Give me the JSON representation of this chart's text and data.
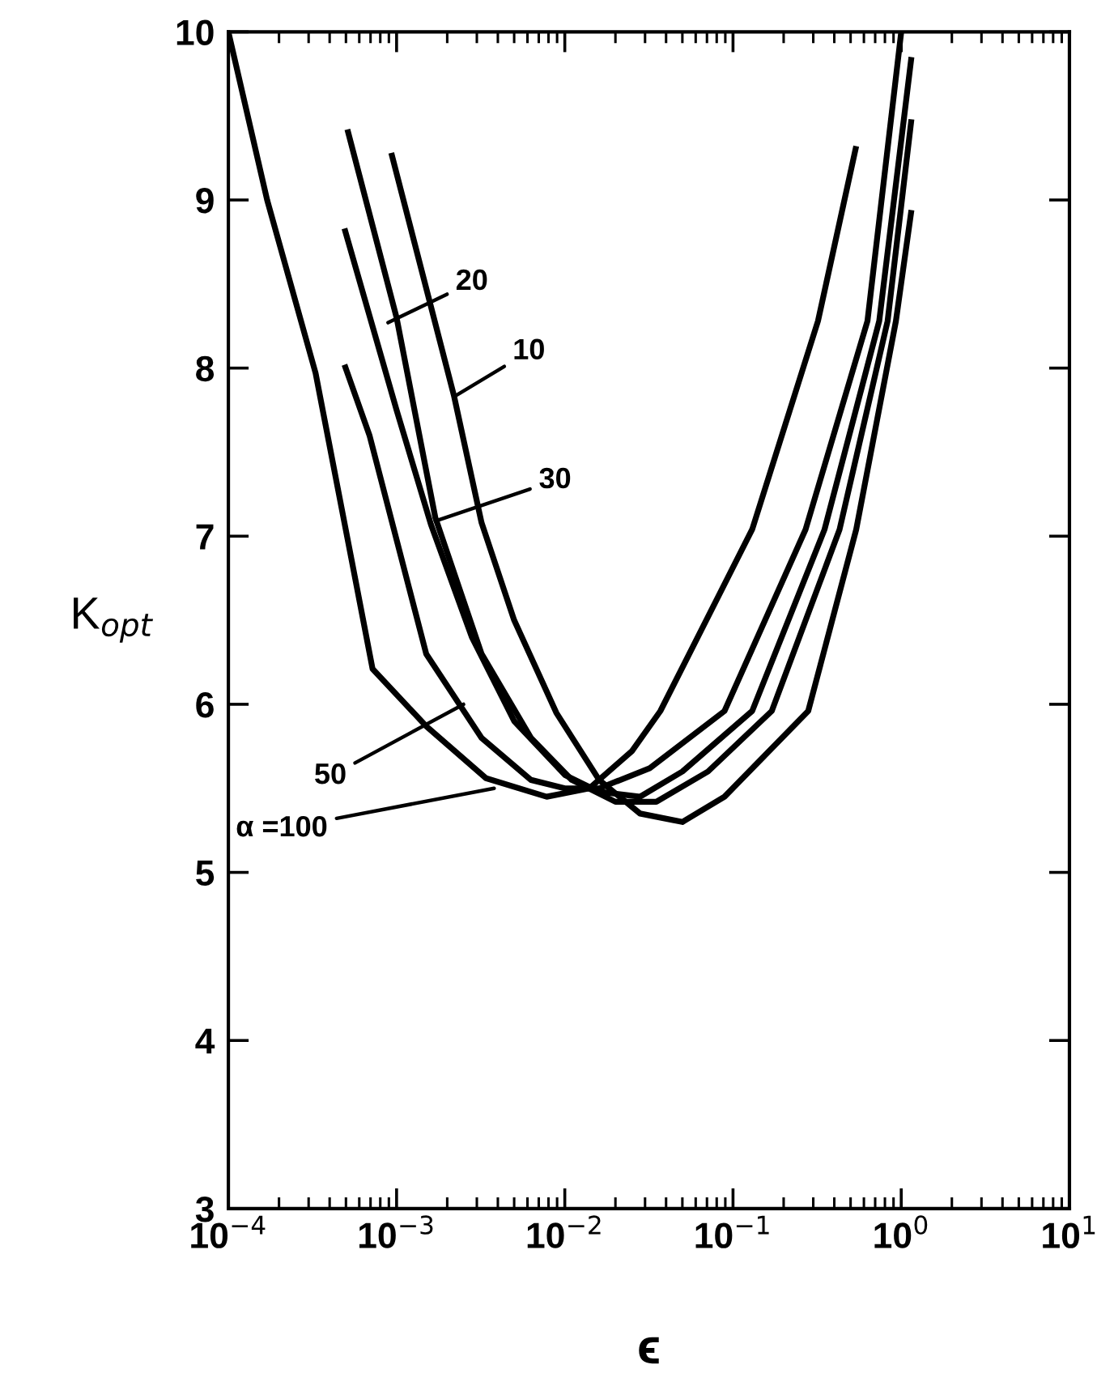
{
  "chart_data": {
    "type": "line",
    "xlabel": "ϵ",
    "ylabel": "K$_{opt}$",
    "log": "x",
    "xlim": [
      0.0001,
      10
    ],
    "ylim": [
      3,
      10
    ],
    "xticks": [
      {
        "value": 0.0001,
        "label": "10$^{−4}$"
      },
      {
        "value": 0.001,
        "label": "10$^{−3}$"
      },
      {
        "value": 0.01,
        "label": "10$^{−2}$"
      },
      {
        "value": 0.1,
        "label": "10$^{−1}$"
      },
      {
        "value": 1,
        "label": "10$^{0}$"
      },
      {
        "value": 10,
        "label": "10$^{1}$"
      }
    ],
    "yticks": [
      3,
      4,
      5,
      6,
      7,
      8,
      9,
      10
    ],
    "series": [
      {
        "color": "#000000",
        "x": [
          0.0001,
          0.00017,
          0.00033,
          0.00054,
          0.00072,
          0.0015,
          0.0034,
          0.0078,
          0.014,
          0.025,
          0.037,
          0.13,
          0.32,
          0.54
        ],
        "values": [
          10,
          9.0,
          7.97,
          6.86,
          6.21,
          5.87,
          5.56,
          5.45,
          5.5,
          5.72,
          5.96,
          7.04,
          8.28,
          9.32
        ]
      },
      {
        "color": "#000000",
        "x": [
          0.00049,
          0.00069,
          0.0015,
          0.0032,
          0.0063,
          0.01,
          0.016,
          0.032,
          0.089,
          0.27,
          0.63,
          1.0
        ],
        "values": [
          8.02,
          7.6,
          6.3,
          5.8,
          5.55,
          5.5,
          5.5,
          5.62,
          5.96,
          7.04,
          8.28,
          10
        ]
      },
      {
        "color": "#000000",
        "x": [
          0.00049,
          0.001,
          0.0016,
          0.0028,
          0.005,
          0.01,
          0.016,
          0.028,
          0.05,
          0.13,
          0.35,
          0.74,
          1.15
        ],
        "values": [
          8.83,
          7.75,
          7.07,
          6.4,
          5.9,
          5.58,
          5.48,
          5.45,
          5.6,
          5.96,
          7.04,
          8.28,
          9.85
        ]
      },
      {
        "color": "#000000",
        "x": [
          0.00051,
          0.001,
          0.0017,
          0.0032,
          0.0063,
          0.011,
          0.02,
          0.035,
          0.071,
          0.17,
          0.43,
          0.83,
          1.15
        ],
        "values": [
          9.42,
          8.3,
          7.11,
          6.3,
          5.8,
          5.55,
          5.42,
          5.42,
          5.6,
          5.96,
          7.04,
          8.28,
          9.48
        ]
      },
      {
        "color": "#000000",
        "x": [
          0.00093,
          0.0022,
          0.0032,
          0.005,
          0.0089,
          0.016,
          0.028,
          0.05,
          0.089,
          0.28,
          0.54,
          0.93,
          1.15
        ],
        "values": [
          9.28,
          7.83,
          7.08,
          6.5,
          5.95,
          5.55,
          5.35,
          5.3,
          5.45,
          5.96,
          7.04,
          8.28,
          8.94
        ]
      }
    ],
    "annotations": [
      {
        "text": "20",
        "x": 0.00089,
        "y": 8.27
      },
      {
        "text": "10",
        "x": 0.0022,
        "y": 7.83
      },
      {
        "text": "30",
        "x": 0.0017,
        "y": 7.09
      },
      {
        "text": "50",
        "x": 0.0025,
        "y": 6.0
      },
      {
        "text": "α =100",
        "x": 0.0038,
        "y": 5.5
      }
    ],
    "marker": "none",
    "line_style": "solid"
  }
}
